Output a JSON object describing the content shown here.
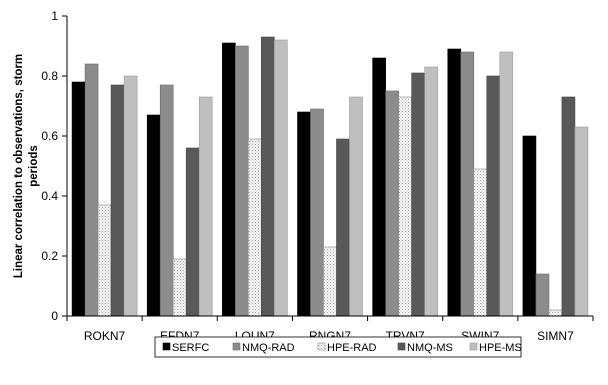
{
  "chart_data": {
    "type": "bar",
    "categories": [
      "ROKN7",
      "EFDN7",
      "LOUN7",
      "RNGN7",
      "TRVN7",
      "SWIN7",
      "SIMN7"
    ],
    "series": [
      {
        "name": "SERFC",
        "values": [
          0.78,
          0.67,
          0.91,
          0.68,
          0.86,
          0.89,
          0.6
        ]
      },
      {
        "name": "NMQ-RAD",
        "values": [
          0.84,
          0.77,
          0.9,
          0.69,
          0.75,
          0.88,
          0.14
        ]
      },
      {
        "name": "HPE-RAD",
        "values": [
          0.37,
          0.19,
          0.59,
          0.23,
          0.73,
          0.49,
          0.02
        ]
      },
      {
        "name": "NMQ-MS",
        "values": [
          0.77,
          0.56,
          0.93,
          0.59,
          0.81,
          0.8,
          0.73
        ]
      },
      {
        "name": "HPE-MS",
        "values": [
          0.8,
          0.73,
          0.92,
          0.73,
          0.83,
          0.88,
          0.63
        ]
      }
    ],
    "ylabel": "Linear correlation to observations, storm periods",
    "ylabel_lines": [
      "Linear correlation to observations, storm",
      "periods"
    ],
    "xlabel": "",
    "ylim": [
      0,
      1
    ],
    "yticks": [
      "0",
      "0.2",
      "0.4",
      "0.6",
      "0.8",
      "1"
    ],
    "grid": false,
    "legend": "bottom",
    "colors": {
      "SERFC": "#000000",
      "NMQ-RAD": "#8c8c8c",
      "HPE-RAD": "pattern-dotted",
      "NMQ-MS": "#595959",
      "HPE-MS": "#bfbfbf"
    }
  }
}
